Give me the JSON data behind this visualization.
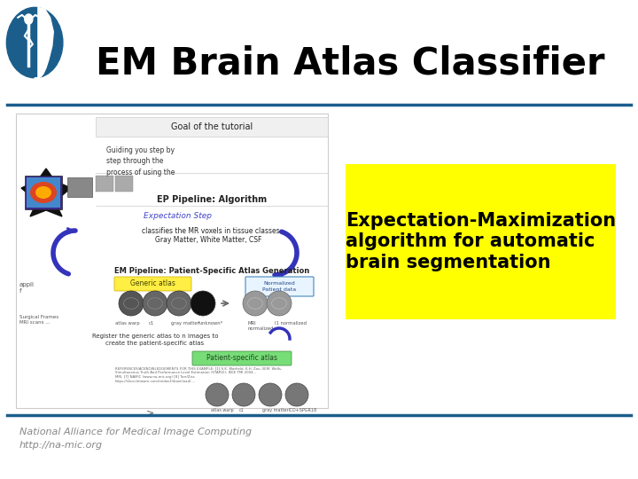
{
  "title": "EM Brain Atlas Classifier",
  "title_fontsize": 30,
  "title_color": "#000000",
  "bg_color": "#ffffff",
  "header_line_color": "#1b5e8c",
  "footer_line_color": "#1b5e8c",
  "yellow_box_text": "Expectation-Maximization\nalgorithm for automatic\nbrain segmentation",
  "yellow_box_color": "#ffff00",
  "yellow_text_fontsize": 15,
  "footer_text1": "National Alliance for Medical Image Computing",
  "footer_text2": "http://na-mic.org",
  "footer_fontsize": 8,
  "footer_color": "#888888",
  "logo_color": "#1b5e8c"
}
